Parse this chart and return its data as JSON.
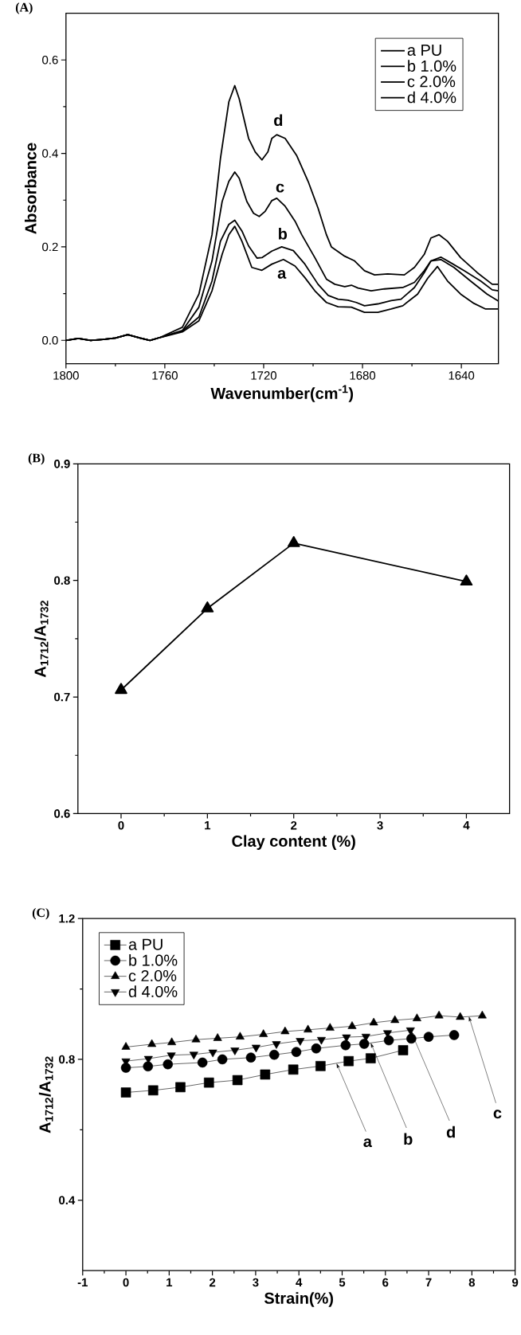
{
  "chart_data": [
    {
      "type": "line",
      "title": "(A)",
      "xlabel": "Wavenumber(cm$^{-1}$)",
      "ylabel": "Absorbance",
      "xlim": [
        1800,
        1625
      ],
      "ylim": [
        -0.05,
        0.7
      ],
      "xticks": [
        1800,
        1760,
        1720,
        1680,
        1640
      ],
      "yticks": [
        {
          "value": 0,
          "label": "0.0"
        },
        0.2,
        0.4,
        0.6
      ],
      "legend": "top right",
      "series": [
        {
          "name": "a PU",
          "color": "#000000",
          "x": [
            1800,
            1795,
            1790,
            1785,
            1780,
            1775,
            1770,
            1766,
            1762,
            1752.9,
            1746.2,
            1740.9,
            1736.8,
            1734.1,
            1731.7,
            1728.8,
            1724.8,
            1720.7,
            1716.7,
            1712.0,
            1707.3,
            1703.3,
            1699.3,
            1694.6,
            1689.9,
            1684.5,
            1679.2,
            1673.8,
            1668.4,
            1663.7,
            1657.7,
            1653.6,
            1649.7,
            1645.6,
            1640.3,
            1634.9,
            1630.2,
            1625
          ],
          "values": [
            0,
            0.004,
            0.0,
            0.002,
            0.005,
            0.012,
            0.005,
            0.0,
            0.006,
            0.018,
            0.042,
            0.106,
            0.184,
            0.226,
            0.244,
            0.212,
            0.156,
            0.15,
            0.163,
            0.173,
            0.159,
            0.134,
            0.106,
            0.081,
            0.072,
            0.071,
            0.06,
            0.06,
            0.067,
            0.074,
            0.099,
            0.133,
            0.158,
            0.127,
            0.099,
            0.079,
            0.067,
            0.067
          ]
        },
        {
          "name": "b 1.0%",
          "color": "#000000",
          "x": [
            1800,
            1795,
            1790,
            1785,
            1780,
            1775,
            1770,
            1766,
            1762,
            1752.9,
            1746.2,
            1740.9,
            1737.5,
            1734.1,
            1731.7,
            1728.8,
            1726.1,
            1722.7,
            1720.7,
            1716.7,
            1712.7,
            1708.0,
            1703.3,
            1698.0,
            1693.9,
            1689.9,
            1685.9,
            1682.5,
            1679.2,
            1673.8,
            1668.4,
            1664.4,
            1659.0,
            1655.0,
            1652.3,
            1648.3,
            1643.0,
            1636.3,
            1629.6,
            1625
          ],
          "values": [
            0,
            0.004,
            0.0,
            0.002,
            0.005,
            0.012,
            0.005,
            0.0,
            0.006,
            0.02,
            0.05,
            0.127,
            0.212,
            0.248,
            0.257,
            0.234,
            0.202,
            0.176,
            0.177,
            0.191,
            0.2,
            0.192,
            0.163,
            0.12,
            0.096,
            0.088,
            0.086,
            0.081,
            0.074,
            0.078,
            0.085,
            0.088,
            0.113,
            0.145,
            0.17,
            0.173,
            0.156,
            0.127,
            0.099,
            0.084
          ]
        },
        {
          "name": "c 2.0%",
          "color": "#000000",
          "x": [
            1800,
            1795,
            1790,
            1785,
            1780,
            1775,
            1770,
            1766,
            1762,
            1752.9,
            1746.2,
            1740.9,
            1736.8,
            1734.1,
            1731.7,
            1729.9,
            1726.8,
            1724.1,
            1721.8,
            1719.4,
            1716.7,
            1714.7,
            1711.3,
            1707.3,
            1704.6,
            1699.3,
            1694.6,
            1691.2,
            1687.2,
            1684.5,
            1681.8,
            1676.5,
            1671.1,
            1663.7,
            1659.0,
            1655.0,
            1652.3,
            1648.3,
            1644.3,
            1638.9,
            1632.2,
            1627.5,
            1625
          ],
          "values": [
            0,
            0.004,
            0.0,
            0.002,
            0.005,
            0.012,
            0.005,
            0.0,
            0.006,
            0.021,
            0.071,
            0.17,
            0.297,
            0.34,
            0.36,
            0.347,
            0.297,
            0.272,
            0.265,
            0.276,
            0.299,
            0.304,
            0.287,
            0.255,
            0.226,
            0.177,
            0.131,
            0.12,
            0.115,
            0.118,
            0.112,
            0.106,
            0.11,
            0.113,
            0.124,
            0.149,
            0.17,
            0.178,
            0.166,
            0.149,
            0.127,
            0.108,
            0.106
          ]
        },
        {
          "name": "d 4.0%",
          "color": "#000000",
          "x": [
            1800,
            1795,
            1790,
            1785,
            1780,
            1775,
            1770,
            1766,
            1762,
            1752.9,
            1746.2,
            1740.9,
            1737.5,
            1734.1,
            1731.7,
            1729.9,
            1726.1,
            1723.4,
            1720.7,
            1718.3,
            1716.7,
            1714.7,
            1711.3,
            1706.7,
            1702.0,
            1698.0,
            1694.6,
            1692.6,
            1687.2,
            1683.2,
            1679.2,
            1675.1,
            1669.8,
            1663.1,
            1659.0,
            1655.0,
            1652.3,
            1649.0,
            1645.6,
            1640.3,
            1633.6,
            1627.5,
            1625
          ],
          "values": [
            0,
            0.004,
            0.0,
            0.002,
            0.005,
            0.012,
            0.005,
            0.0,
            0.006,
            0.028,
            0.099,
            0.226,
            0.389,
            0.51,
            0.545,
            0.517,
            0.432,
            0.403,
            0.386,
            0.403,
            0.432,
            0.44,
            0.432,
            0.396,
            0.34,
            0.283,
            0.226,
            0.2,
            0.18,
            0.17,
            0.149,
            0.14,
            0.142,
            0.14,
            0.156,
            0.184,
            0.219,
            0.226,
            0.212,
            0.177,
            0.145,
            0.12,
            0.12
          ]
        }
      ],
      "annotations": [
        "d",
        "c",
        "b",
        "a"
      ]
    },
    {
      "type": "line",
      "title": "(B)",
      "xlabel": "Clay content (%)",
      "ylabel": "A$_{1712}$/A$_{1732}$",
      "xlim": [
        -0.5,
        4.5
      ],
      "ylim": [
        0.6,
        0.9
      ],
      "xticks": [
        0,
        1,
        2,
        3,
        4
      ],
      "yticks": [
        0.6,
        0.7,
        0.8,
        0.9
      ],
      "marker": "triangle",
      "color": "#000000",
      "x": [
        0,
        1,
        2,
        4
      ],
      "values": [
        0.706,
        0.776,
        0.832,
        0.799
      ]
    },
    {
      "type": "line",
      "title": "(C)",
      "xlabel": "Strain(%)",
      "ylabel": "A$_{1712}$/A$_{1732}$",
      "xlim": [
        -1,
        9
      ],
      "ylim": [
        0.2,
        1.2
      ],
      "xticks": [
        -1,
        0,
        1,
        2,
        3,
        4,
        5,
        6,
        7,
        8,
        9
      ],
      "yticks": [
        0.4,
        0.8,
        1.2
      ],
      "legend": "top left",
      "series": [
        {
          "name": "a PU",
          "color": "#000000",
          "marker": "square",
          "x": [
            0,
            0.63,
            1.26,
            1.92,
            2.58,
            3.22,
            3.87,
            4.5,
            5.15,
            5.66,
            6.41
          ],
          "values": [
            0.706,
            0.712,
            0.721,
            0.734,
            0.741,
            0.757,
            0.771,
            0.781,
            0.795,
            0.803,
            0.826
          ]
        },
        {
          "name": "b 1.0%",
          "color": "#000000",
          "marker": "circle",
          "x": [
            0,
            0.51,
            0.97,
            1.77,
            2.23,
            2.89,
            3.43,
            3.94,
            4.4,
            5.08,
            5.51,
            6.08,
            6.6,
            7.0,
            7.59
          ],
          "values": [
            0.776,
            0.78,
            0.786,
            0.791,
            0.8,
            0.805,
            0.813,
            0.821,
            0.831,
            0.84,
            0.844,
            0.854,
            0.859,
            0.864,
            0.869
          ]
        },
        {
          "name": "c 2.0%",
          "color": "#000000",
          "marker": "triangle",
          "x": [
            0,
            0.6,
            1.06,
            1.62,
            2.12,
            2.64,
            3.18,
            3.68,
            4.21,
            4.72,
            5.23,
            5.73,
            6.22,
            6.73,
            7.24,
            7.73,
            8.24
          ],
          "values": [
            0.835,
            0.843,
            0.848,
            0.856,
            0.86,
            0.864,
            0.871,
            0.879,
            0.884,
            0.889,
            0.894,
            0.904,
            0.911,
            0.916,
            0.924,
            0.92,
            0.924
          ]
        },
        {
          "name": "d 4.0%",
          "color": "#000000",
          "marker": "triangle-down",
          "x": [
            0,
            0.52,
            1.05,
            1.57,
            2.01,
            2.52,
            3.01,
            3.48,
            4.03,
            4.52,
            5.1,
            5.55,
            6.05,
            6.58
          ],
          "values": [
            0.795,
            0.802,
            0.812,
            0.814,
            0.82,
            0.826,
            0.834,
            0.844,
            0.853,
            0.856,
            0.863,
            0.865,
            0.875,
            0.883
          ]
        }
      ],
      "annotations": [
        {
          "text": "a",
          "x": 4.87,
          "y": 0.789
        },
        {
          "text": "b",
          "x": 5.66,
          "y": 0.847
        },
        {
          "text": "d",
          "x": 6.58,
          "y": 0.883
        },
        {
          "text": "c",
          "x": 7.93,
          "y": 0.922
        }
      ]
    }
  ]
}
